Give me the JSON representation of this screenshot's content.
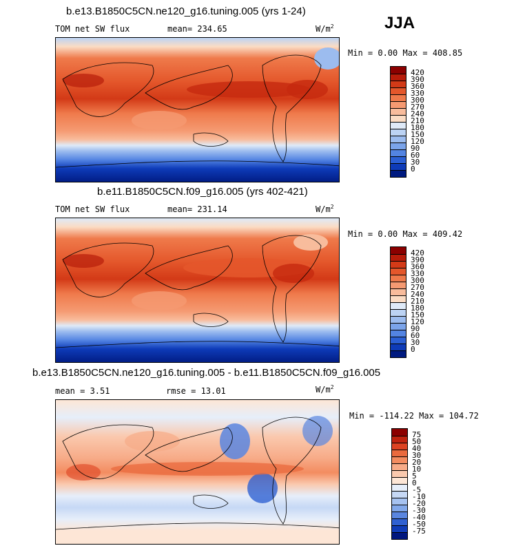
{
  "season": "JJA",
  "panels": [
    {
      "title": "b.e13.B1850C5CN.ne120_g16.tuning.005 (yrs 1-24)",
      "variable": "TOM net SW flux",
      "mean_label": "mean= 234.65",
      "units": "W/m",
      "units_sup": "2",
      "min_max": "Min =    0.00 Max = 408.85",
      "levels": [
        "420",
        "390",
        "360",
        "330",
        "300",
        "270",
        "240",
        "210",
        "180",
        "150",
        "120",
        "90",
        "60",
        "30",
        "0"
      ],
      "colors": [
        "#8b0000",
        "#b71c0a",
        "#d33a17",
        "#e4572b",
        "#ef7a4b",
        "#f59a72",
        "#f8bc9c",
        "#fbdcc4",
        "#dfeaf8",
        "#bcd3f4",
        "#9cbcef",
        "#7ba4ea",
        "#5384e2",
        "#2b5fd4",
        "#0e3bb8",
        "#001a80"
      ]
    },
    {
      "title": "b.e11.B1850C5CN.f09_g16.005 (yrs 402-421)",
      "variable": "TOM net SW flux",
      "mean_label": "mean= 231.14",
      "units": "W/m",
      "units_sup": "2",
      "min_max": "Min =    0.00 Max = 409.42",
      "levels": [
        "420",
        "390",
        "360",
        "330",
        "300",
        "270",
        "240",
        "210",
        "180",
        "150",
        "120",
        "90",
        "60",
        "30",
        "0"
      ],
      "colors": [
        "#8b0000",
        "#b71c0a",
        "#d33a17",
        "#e4572b",
        "#ef7a4b",
        "#f59a72",
        "#f8bc9c",
        "#fbdcc4",
        "#dfeaf8",
        "#bcd3f4",
        "#9cbcef",
        "#7ba4ea",
        "#5384e2",
        "#2b5fd4",
        "#0e3bb8",
        "#001a80"
      ]
    },
    {
      "title": "b.e13.B1850C5CN.ne120_g16.tuning.005 - b.e11.B1850C5CN.f09_g16.005",
      "variable": "mean =    3.51",
      "mean_label": "rmse =   13.01",
      "units": "W/m",
      "units_sup": "2",
      "min_max": "Min = -114.22 Max = 104.72",
      "levels": [
        "75",
        "50",
        "40",
        "30",
        "20",
        "10",
        "5",
        "0",
        "-5",
        "-10",
        "-20",
        "-30",
        "-40",
        "-50",
        "-75"
      ],
      "colors": [
        "#8b0000",
        "#c0230f",
        "#dd4322",
        "#ea6a3e",
        "#f38c60",
        "#f7ab88",
        "#fac9ae",
        "#fde6d6",
        "#e6eefa",
        "#c6d8f5",
        "#a6c2f0",
        "#82a8ea",
        "#5a86e0",
        "#3061d2",
        "#103cb8",
        "#00167e"
      ]
    }
  ]
}
